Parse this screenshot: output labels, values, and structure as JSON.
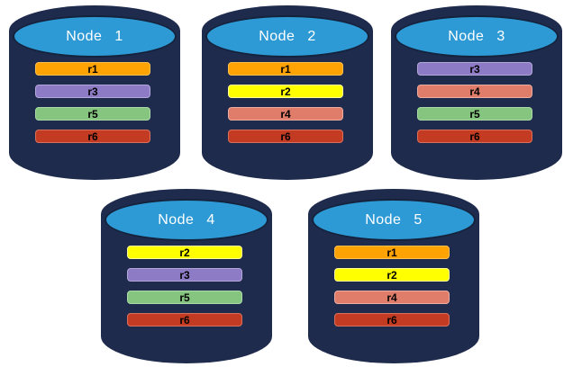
{
  "diagram": {
    "kind": "database-replication-diagram",
    "node_count": 5,
    "partition_ids": [
      "r1",
      "r2",
      "r3",
      "r4",
      "r5",
      "r6"
    ]
  },
  "nodes": [
    {
      "label": "Node 1",
      "partitions": [
        "r1",
        "r3",
        "r5",
        "r6"
      ]
    },
    {
      "label": "Node 2",
      "partitions": [
        "r1",
        "r2",
        "r4",
        "r6"
      ]
    },
    {
      "label": "Node 3",
      "partitions": [
        "r3",
        "r4",
        "r5",
        "r6"
      ]
    },
    {
      "label": "Node 4",
      "partitions": [
        "r2",
        "r3",
        "r5",
        "r6"
      ]
    },
    {
      "label": "Node 5",
      "partitions": [
        "r1",
        "r2",
        "r4",
        "r6"
      ]
    }
  ],
  "partition_colors": {
    "r1": {
      "fill": "#FFA204",
      "border": "#FFC14D"
    },
    "r2": {
      "fill": "#FFFF00",
      "border": "#FFFF99"
    },
    "r3": {
      "fill": "#8D7CC5",
      "border": "#B3A7DA"
    },
    "r4": {
      "fill": "#DF7D6A",
      "border": "#ECAC9F"
    },
    "r5": {
      "fill": "#85C57F",
      "border": "#ACD9A8"
    },
    "r6": {
      "fill": "#C43B23",
      "border": "#D9705C"
    }
  },
  "colors": {
    "background": "#FFFFFF",
    "cylinder_body": "#1F2B4D",
    "cylinder_top": "#2E9AD5",
    "ellipse_border": "#14223C",
    "label_text": "#FFFFFF",
    "bar_text": "#000000"
  }
}
